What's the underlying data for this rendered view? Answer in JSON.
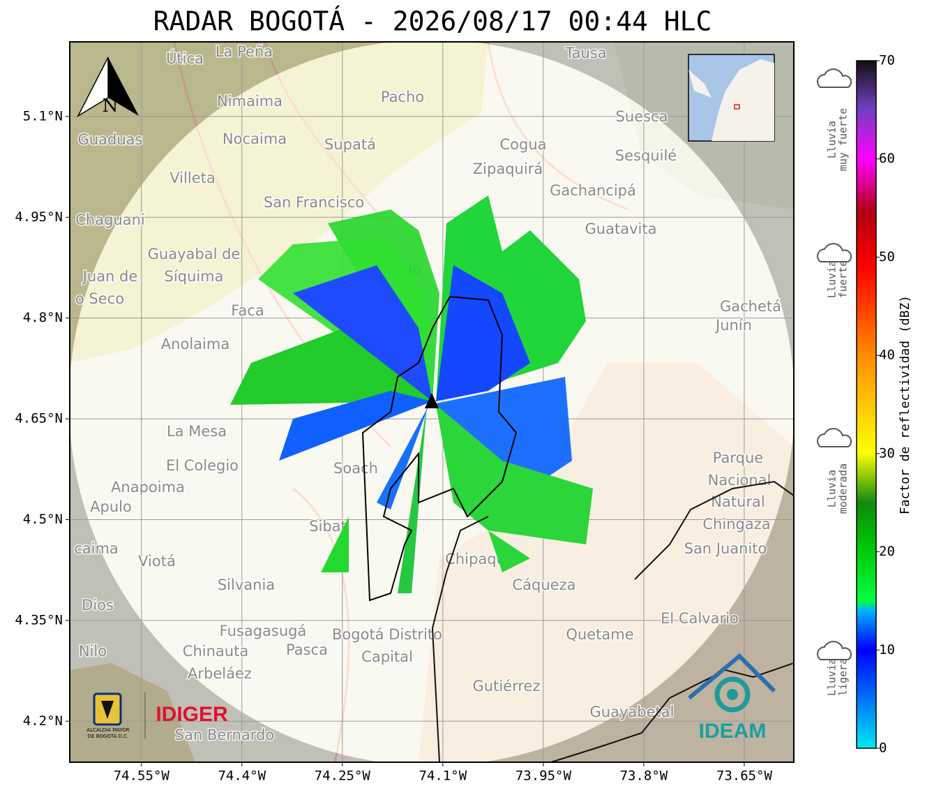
{
  "title": "RADAR BOGOTÁ - 2026/08/17 00:44 HLC",
  "north": "N",
  "map": {
    "xlim": [
      -74.657,
      -73.576
    ],
    "ylim": [
      4.139,
      5.211
    ],
    "xticks": [
      {
        "value": -74.55,
        "label": "74.55°W"
      },
      {
        "value": -74.4,
        "label": "74.4°W"
      },
      {
        "value": -74.25,
        "label": "74.25°W"
      },
      {
        "value": -74.1,
        "label": "74.1°W"
      },
      {
        "value": -73.95,
        "label": "73.95°W"
      },
      {
        "value": -73.8,
        "label": "73.8°W"
      },
      {
        "value": -73.65,
        "label": "73.65°W"
      }
    ],
    "yticks": [
      {
        "value": 5.1,
        "label": "5.1°N"
      },
      {
        "value": 4.95,
        "label": "4.95°N"
      },
      {
        "value": 4.8,
        "label": "4.8°N"
      },
      {
        "value": 4.65,
        "label": "4.65°N"
      },
      {
        "value": 4.5,
        "label": "4.5°N"
      },
      {
        "value": 4.35,
        "label": "4.35°N"
      },
      {
        "value": 4.2,
        "label": "4.2°N"
      }
    ],
    "grid": true,
    "places": [
      "Útica",
      "La Peña",
      "Tausa",
      "Pacho",
      "Nimaima",
      "Guaduas",
      "Nocaima",
      "Supatá",
      "Cogua",
      "Suesca",
      "Sesquilé",
      "Zipaquirá",
      "Villeta",
      "Gachancipá",
      "San Francisco",
      "Chaguani",
      "Guatavita",
      "Guayabal de",
      "Síquima",
      "Juan de",
      "o Seco",
      "Tenjo",
      "Faca",
      "Gachetá",
      "Junín",
      "Anolaima",
      "La Mesa",
      "El Colegio",
      "Parque",
      "Nacional",
      "Natural",
      "Chingaza",
      "Anapoima",
      "Apulo",
      "Soach",
      "Sibat",
      "Chipaque",
      "San Juanito",
      "Viotá",
      "Cáqueza",
      "Silvania",
      "El Calvario",
      "Dios",
      "Fusagasugá",
      "Quetame",
      "Bogotá Distrito",
      "Capital",
      "Nilo",
      "Chinauta",
      "Pasca",
      "Arbeláez",
      "Gutiérrez",
      "Guayabetal",
      "San Bernardo",
      "caima"
    ]
  },
  "colorbar": {
    "label": "Factor de reflectividad (dBZ)",
    "lim": [
      0,
      70
    ],
    "ticks": [
      0,
      10,
      20,
      30,
      40,
      50,
      60,
      70
    ]
  },
  "rain_levels": [
    [
      "Lluvia",
      "muy fuerte"
    ],
    [
      "Lluvia",
      "fuerte"
    ],
    [
      "Lluvia",
      "moderada"
    ],
    [
      "Lluvia",
      "ligera"
    ]
  ],
  "logos": {
    "alcaldia": [
      "ALCALDÍA MAYOR",
      "DE BOGOTÁ D.C."
    ],
    "idiger": "IDIGER",
    "ideam": "IDEAM"
  }
}
